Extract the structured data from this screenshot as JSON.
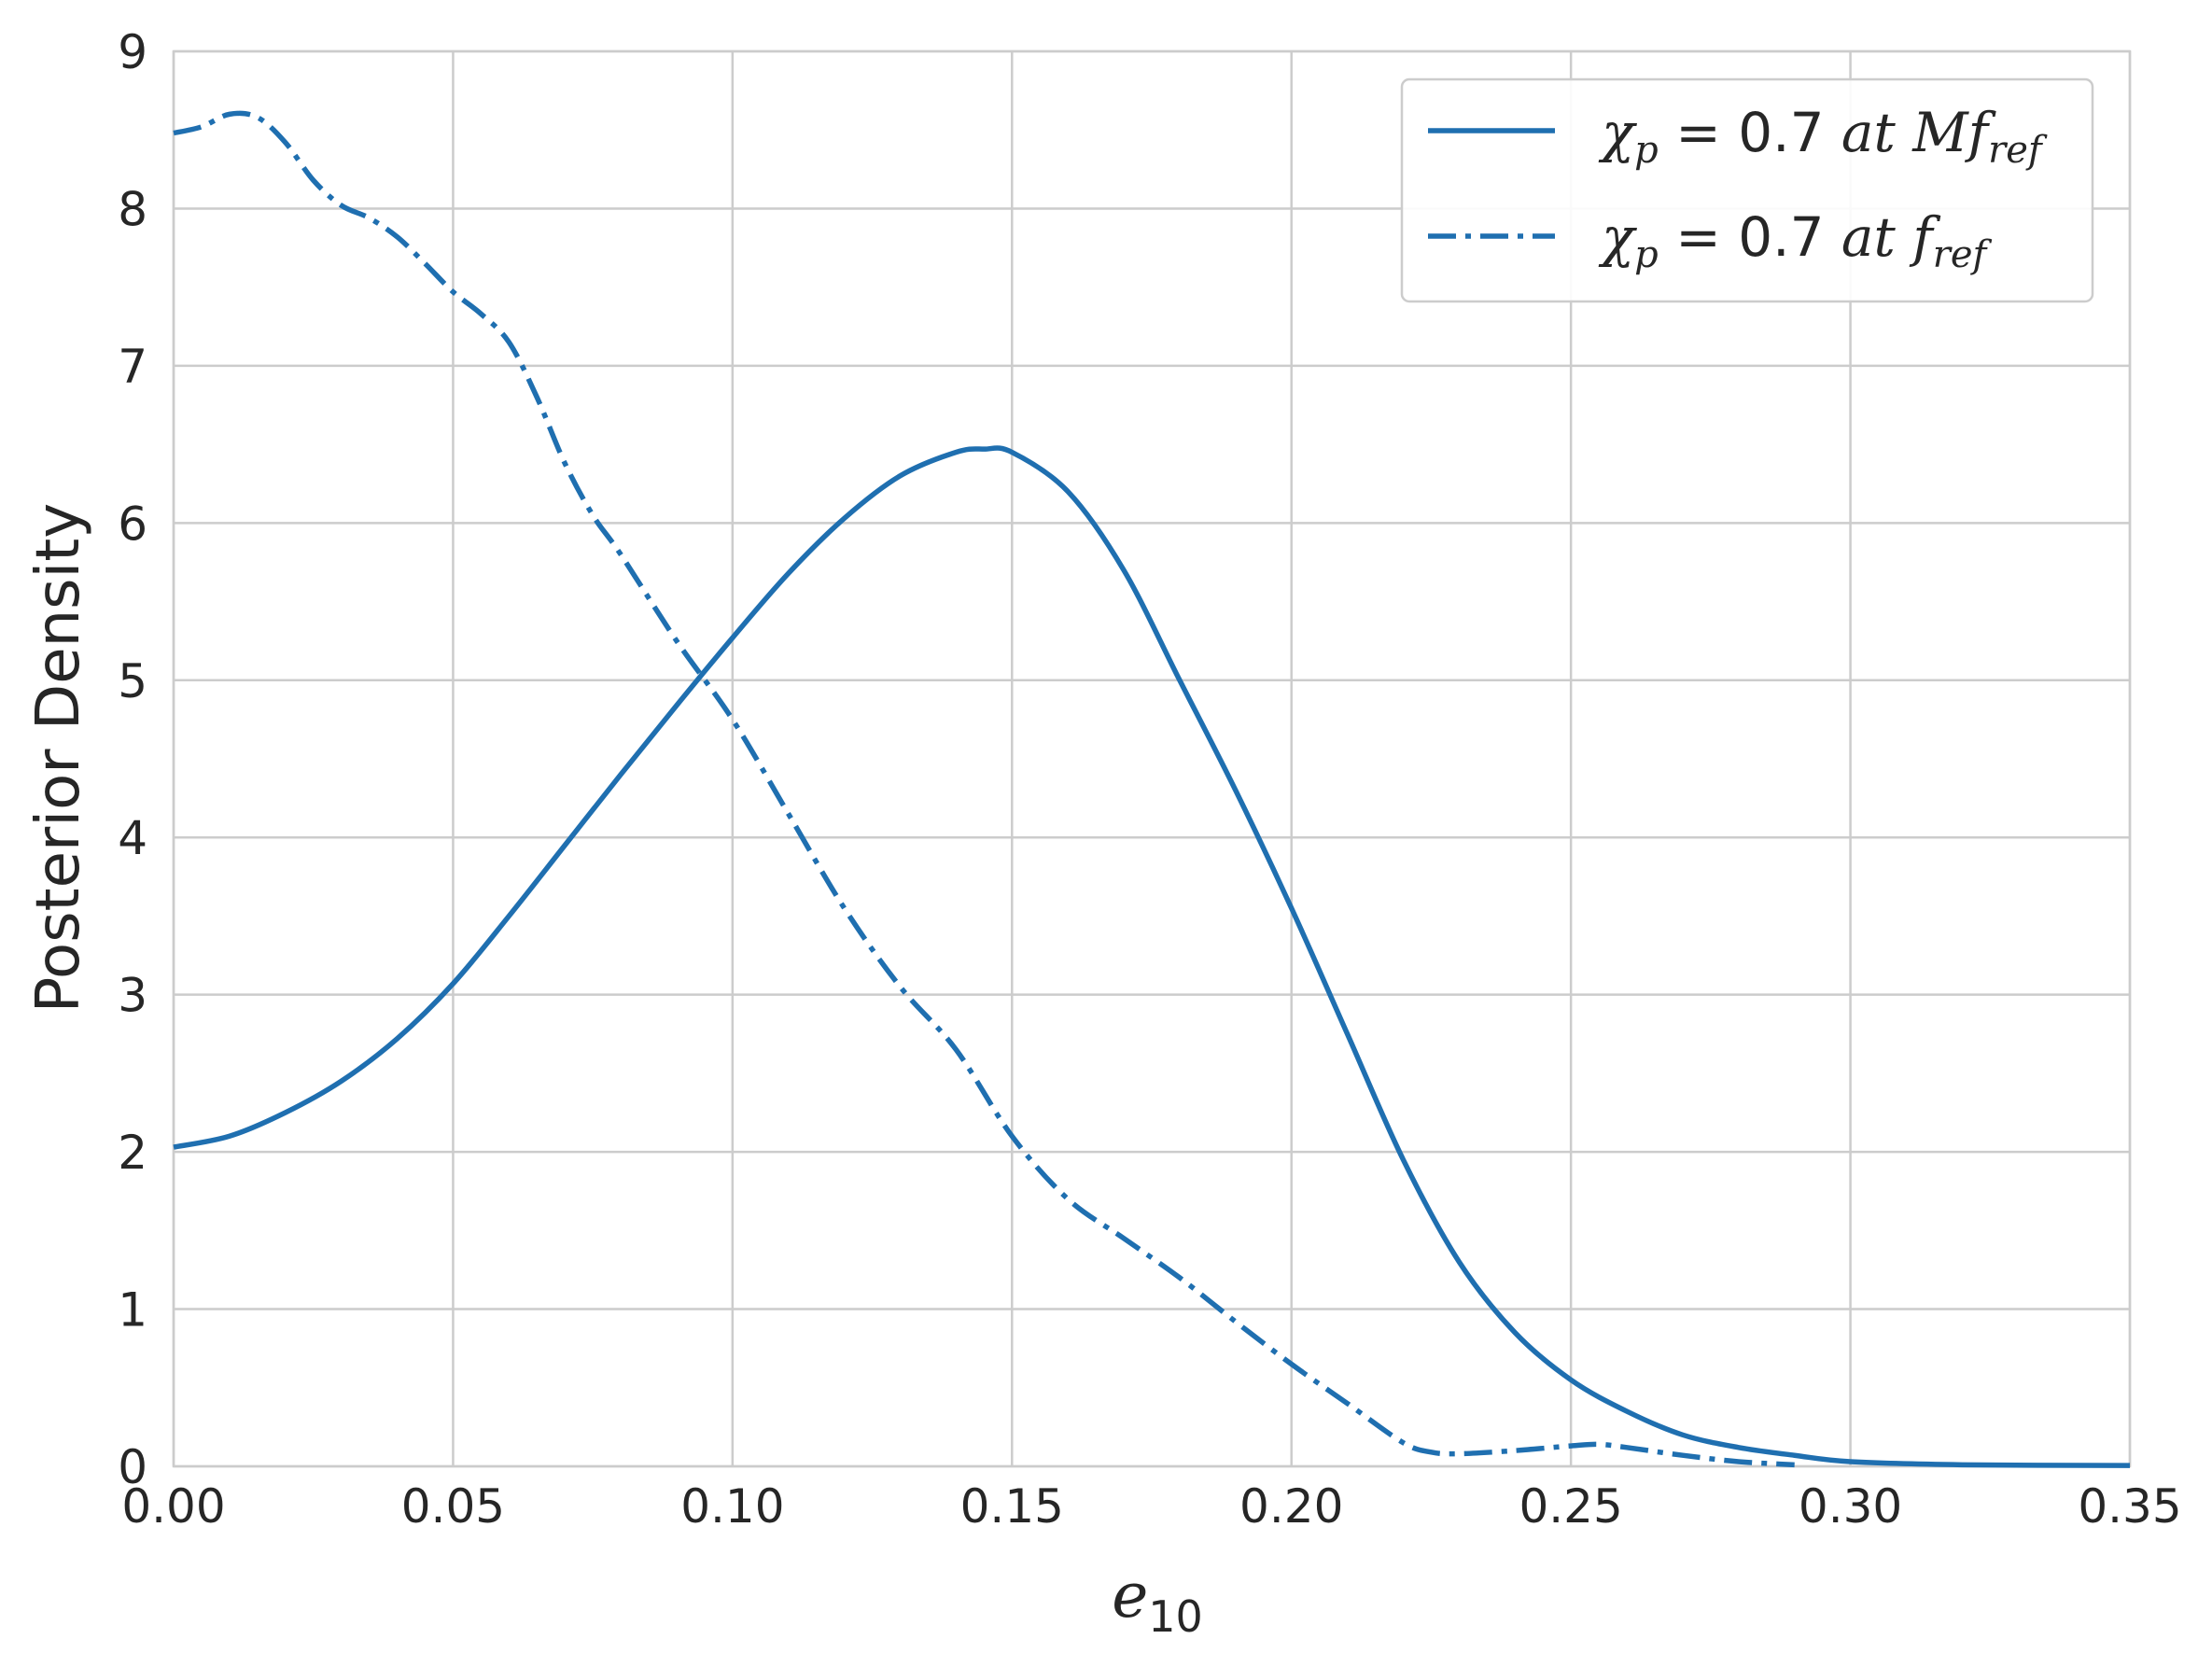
{
  "chart_data": {
    "type": "line",
    "xlabel": {
      "base": "e",
      "sub": "10"
    },
    "ylabel": "Posterior Density",
    "xlim": [
      0,
      0.35
    ],
    "ylim": [
      0,
      9
    ],
    "xticks": [
      "0.00",
      "0.05",
      "0.10",
      "0.15",
      "0.20",
      "0.25",
      "0.30",
      "0.35"
    ],
    "yticks": [
      "0",
      "1",
      "2",
      "3",
      "4",
      "5",
      "6",
      "7",
      "8",
      "9"
    ],
    "grid": true,
    "legend_position": "top-right",
    "colors": {
      "line": "#1f6fb0",
      "grid": "#cccccc",
      "text": "#262626"
    },
    "series": [
      {
        "name": "χp = 0.7 at Mfref",
        "legend": {
          "chi": "χ",
          "chi_sub": "p",
          "eq": " = 0.7 ",
          "at": "at ",
          "f": "Mf",
          "f_sub": "ref"
        },
        "style": "solid",
        "x": [
          0.0,
          0.01,
          0.02,
          0.03,
          0.04,
          0.05,
          0.06,
          0.07,
          0.08,
          0.09,
          0.1,
          0.11,
          0.12,
          0.13,
          0.14,
          0.145,
          0.15,
          0.16,
          0.17,
          0.18,
          0.19,
          0.2,
          0.21,
          0.22,
          0.23,
          0.24,
          0.25,
          0.26,
          0.27,
          0.28,
          0.29,
          0.3,
          0.32,
          0.35
        ],
        "y": [
          2.03,
          2.1,
          2.25,
          2.45,
          2.72,
          3.07,
          3.5,
          3.95,
          4.4,
          4.84,
          5.27,
          5.68,
          6.03,
          6.3,
          6.45,
          6.47,
          6.45,
          6.2,
          5.7,
          5.0,
          4.3,
          3.55,
          2.75,
          1.95,
          1.3,
          0.85,
          0.55,
          0.35,
          0.2,
          0.12,
          0.07,
          0.03,
          0.01,
          0.005
        ]
      },
      {
        "name": "χp = 0.7 at fref",
        "legend": {
          "chi": "χ",
          "chi_sub": "p",
          "eq": " = 0.7 ",
          "at": "at ",
          "f": "f",
          "f_sub": "ref"
        },
        "style": "dashdot",
        "x": [
          0.0,
          0.005,
          0.01,
          0.015,
          0.02,
          0.025,
          0.03,
          0.035,
          0.04,
          0.045,
          0.05,
          0.055,
          0.06,
          0.065,
          0.07,
          0.075,
          0.08,
          0.09,
          0.1,
          0.11,
          0.12,
          0.13,
          0.14,
          0.15,
          0.16,
          0.17,
          0.18,
          0.19,
          0.2,
          0.21,
          0.22,
          0.225,
          0.23,
          0.24,
          0.25,
          0.255,
          0.26,
          0.27,
          0.28,
          0.29
        ],
        "y": [
          8.48,
          8.52,
          8.6,
          8.58,
          8.42,
          8.18,
          8.02,
          7.94,
          7.82,
          7.65,
          7.47,
          7.33,
          7.15,
          6.8,
          6.38,
          6.05,
          5.8,
          5.25,
          4.75,
          4.15,
          3.55,
          3.05,
          2.65,
          2.1,
          1.7,
          1.45,
          1.2,
          0.92,
          0.65,
          0.4,
          0.15,
          0.09,
          0.08,
          0.1,
          0.13,
          0.14,
          0.12,
          0.07,
          0.03,
          0.01
        ]
      }
    ]
  }
}
